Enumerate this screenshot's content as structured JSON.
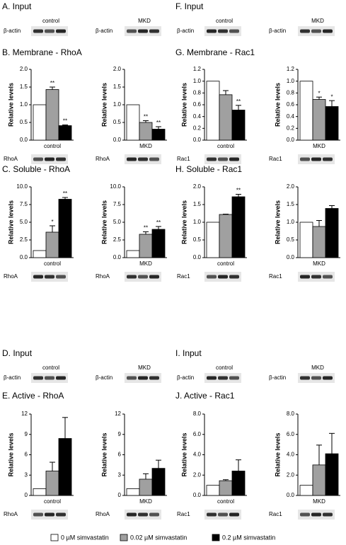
{
  "panels": [
    {
      "title": "A. Input",
      "groups": [
        "control",
        "MKD"
      ],
      "blot_labels": [
        "β-actin",
        "β-actin"
      ]
    },
    {
      "title": "B. Membrane - RhoA",
      "blot_labels": [
        "RhoA",
        "RhoA"
      ]
    },
    {
      "title": "C. Soluble - RhoA",
      "blot_labels": [
        "RhoA",
        "RhoA"
      ]
    },
    {
      "title": "D. Input",
      "groups": [
        "control",
        "MKD"
      ],
      "blot_labels": [
        "β-actin",
        "β-actin"
      ]
    },
    {
      "title": "E. Active - RhoA",
      "blot_labels": [
        "RhoA",
        "RhoA"
      ]
    },
    {
      "title": "F. Input",
      "groups": [
        "control",
        "MKD"
      ],
      "blot_labels": [
        "β-actin",
        "β-actin"
      ]
    },
    {
      "title": "G. Membrane - Rac1",
      "blot_labels": [
        "Rac1",
        "Rac1"
      ]
    },
    {
      "title": "H. Soluble - Rac1",
      "blot_labels": [
        "Rac1",
        "Rac1"
      ]
    },
    {
      "title": "I. Input",
      "groups": [
        "control",
        "MKD"
      ],
      "blot_labels": [
        "β-actin",
        "β-actin"
      ]
    },
    {
      "title": "J. Active - Rac1",
      "blot_labels": [
        "Rac1",
        "Rac1"
      ]
    }
  ],
  "legend": [
    {
      "name": "0 µM simvastatin",
      "color": "#ffffff"
    },
    {
      "name": "0.02 µM simvastatin",
      "color": "#a0a0a0"
    },
    {
      "name": "0.2 µM simvastatin",
      "color": "#000000"
    }
  ],
  "chart_data": [
    {
      "type": "bar",
      "ylabel": "Relative levels",
      "xlabel": "control",
      "values": [
        1,
        1.43,
        0.41
      ],
      "errors": [
        null,
        0.07,
        0.02
      ],
      "annotations": [
        null,
        "**",
        "**"
      ],
      "ylim": [
        0,
        2
      ],
      "yticks": [
        {
          "value": 0,
          "label": "0.0"
        },
        0.5,
        {
          "value": 1,
          "label": "1.0"
        },
        1.5,
        {
          "value": 2,
          "label": "2.0"
        }
      ]
    },
    {
      "type": "bar",
      "ylabel": "Relative levels",
      "xlabel": "MKD",
      "values": [
        1,
        0.5,
        0.31
      ],
      "errors": [
        null,
        0.05,
        0.07
      ],
      "annotations": [
        null,
        "**",
        "**"
      ],
      "ylim": [
        0,
        2
      ],
      "yticks": [
        {
          "value": 0,
          "label": "0.0"
        },
        0.5,
        {
          "value": 1,
          "label": "1.0"
        },
        1.5,
        {
          "value": 2,
          "label": "2.0"
        }
      ]
    },
    {
      "type": "bar",
      "ylabel": "Relative levels",
      "xlabel": "control",
      "values": [
        1,
        3.6,
        8.25
      ],
      "errors": [
        null,
        0.9,
        0.25
      ],
      "annotations": [
        null,
        "*",
        "**"
      ],
      "ylim": [
        0,
        10
      ],
      "yticks": [
        {
          "value": 0,
          "label": "0.0"
        },
        2.5,
        {
          "value": 5,
          "label": "5.0"
        },
        7.5,
        {
          "value": 10,
          "label": "10.0"
        }
      ]
    },
    {
      "type": "bar",
      "ylabel": "Relative levels",
      "xlabel": "MKD",
      "values": [
        1,
        3.3,
        4.0
      ],
      "errors": [
        null,
        0.35,
        0.4
      ],
      "annotations": [
        null,
        "**",
        "**"
      ],
      "ylim": [
        0,
        10
      ],
      "yticks": [
        {
          "value": 0,
          "label": "0.0"
        },
        2.5,
        {
          "value": 5,
          "label": "5.0"
        },
        7.5,
        {
          "value": 10,
          "label": "10.0"
        }
      ]
    },
    {
      "type": "bar",
      "ylabel": "Relative levels",
      "xlabel": "control",
      "values": [
        1,
        3.6,
        8.4
      ],
      "errors": [
        null,
        1.3,
        3.1
      ],
      "annotations": [
        null,
        null,
        null
      ],
      "ylim": [
        0,
        12
      ],
      "yticks": [
        0,
        3,
        6,
        9,
        12
      ]
    },
    {
      "type": "bar",
      "ylabel": "Relative levels",
      "xlabel": "MKD",
      "values": [
        1,
        2.4,
        4.0
      ],
      "errors": [
        null,
        0.8,
        1.2
      ],
      "annotations": [
        null,
        null,
        null
      ],
      "ylim": [
        0,
        12
      ],
      "yticks": [
        0,
        3,
        6,
        9,
        12
      ]
    },
    {
      "type": "bar",
      "ylabel": "Relative levels",
      "xlabel": "control",
      "values": [
        1,
        0.77,
        0.51
      ],
      "errors": [
        null,
        0.07,
        0.08
      ],
      "annotations": [
        null,
        null,
        "**"
      ],
      "ylim": [
        0,
        1.2
      ],
      "yticks": [
        {
          "value": 0,
          "label": "0.0"
        },
        0.2,
        0.4,
        0.6,
        0.8,
        {
          "value": 1,
          "label": "1.0"
        },
        1.2
      ]
    },
    {
      "type": "bar",
      "ylabel": "Relative levels",
      "xlabel": "MKD",
      "values": [
        1,
        0.69,
        0.57
      ],
      "errors": [
        null,
        0.04,
        0.1
      ],
      "annotations": [
        null,
        "*",
        "*"
      ],
      "ylim": [
        0,
        1.2
      ],
      "yticks": [
        {
          "value": 0,
          "label": "0.0"
        },
        0.2,
        0.4,
        0.6,
        0.8,
        {
          "value": 1,
          "label": "1.0"
        },
        1.2
      ]
    },
    {
      "type": "bar",
      "ylabel": "Relative levels",
      "xlabel": "control",
      "values": [
        1,
        1.22,
        1.72
      ],
      "errors": [
        null,
        0.01,
        0.07
      ],
      "annotations": [
        null,
        null,
        "**"
      ],
      "ylim": [
        0,
        2
      ],
      "yticks": [
        {
          "value": 0,
          "label": "0.0"
        },
        0.5,
        {
          "value": 1,
          "label": "1.0"
        },
        1.5,
        {
          "value": 2,
          "label": "2.0"
        }
      ]
    },
    {
      "type": "bar",
      "ylabel": "Relative levels",
      "xlabel": "MKD",
      "values": [
        1,
        0.88,
        1.39
      ],
      "errors": [
        null,
        0.17,
        0.08
      ],
      "annotations": [
        null,
        null,
        null
      ],
      "ylim": [
        0,
        2
      ],
      "yticks": [
        {
          "value": 0,
          "label": "0.0"
        },
        0.5,
        {
          "value": 1,
          "label": "1.0"
        },
        1.5,
        {
          "value": 2,
          "label": "2.0"
        }
      ]
    },
    {
      "type": "bar",
      "ylabel": "Relative levels",
      "xlabel": "control",
      "values": [
        1,
        1.45,
        2.4
      ],
      "errors": [
        null,
        0.1,
        1.1
      ],
      "annotations": [
        null,
        null,
        null
      ],
      "ylim": [
        0,
        8
      ],
      "yticks": [
        {
          "value": 0,
          "label": "0.0"
        },
        {
          "value": 2,
          "label": "2.0"
        },
        {
          "value": 4,
          "label": "4.0"
        },
        {
          "value": 6,
          "label": "6.0"
        },
        {
          "value": 8,
          "label": "8.0"
        }
      ]
    },
    {
      "type": "bar",
      "ylabel": "Relative levels",
      "xlabel": "MKD",
      "values": [
        1,
        3.0,
        4.1
      ],
      "errors": [
        null,
        1.95,
        2.0
      ],
      "annotations": [
        null,
        null,
        null
      ],
      "ylim": [
        0,
        8
      ],
      "yticks": [
        {
          "value": 0,
          "label": "0.0"
        },
        {
          "value": 2,
          "label": "2.0"
        },
        {
          "value": 4,
          "label": "4.0"
        },
        {
          "value": 6,
          "label": "6.0"
        },
        {
          "value": 8,
          "label": "8.0"
        }
      ]
    }
  ]
}
